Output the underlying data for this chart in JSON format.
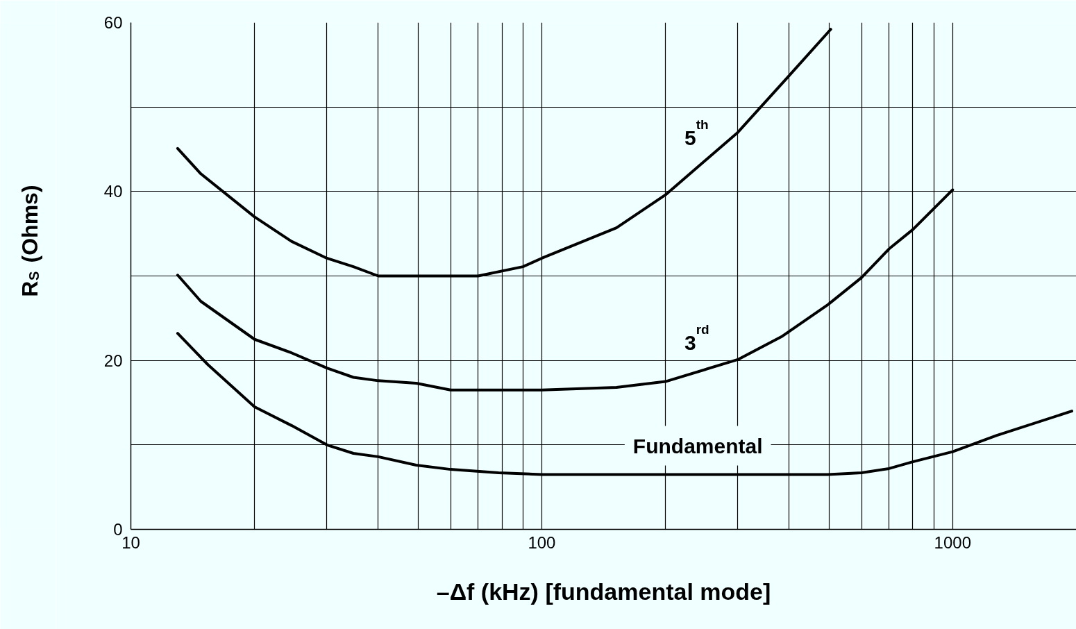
{
  "chart_data": {
    "type": "line",
    "xlabel": "–Δf (kHz) [fundamental mode]",
    "ylabel": "R$_{S}$ (Ohms)",
    "log": "x",
    "grid": true,
    "marker": "none",
    "line_style": "solid",
    "xlim": [
      10,
      2000
    ],
    "ylim": [
      0,
      60
    ],
    "xticks": [
      10,
      {
        "value": 20,
        "label": null
      },
      {
        "value": 30,
        "label": null
      },
      {
        "value": 40,
        "label": null
      },
      {
        "value": 50,
        "label": null
      },
      {
        "value": 60,
        "label": null
      },
      {
        "value": 70,
        "label": null
      },
      {
        "value": 80,
        "label": null
      },
      {
        "value": 90,
        "label": null
      },
      100,
      {
        "value": 200,
        "label": null
      },
      {
        "value": 300,
        "label": null
      },
      {
        "value": 400,
        "label": null
      },
      {
        "value": 500,
        "label": null
      },
      {
        "value": 600,
        "label": null
      },
      {
        "value": 700,
        "label": null
      },
      {
        "value": 800,
        "label": null
      },
      {
        "value": 900,
        "label": null
      },
      1000
    ],
    "yticks": [
      0,
      {
        "value": 10,
        "label": null
      },
      20,
      {
        "value": 30,
        "label": null
      },
      40,
      {
        "value": 50,
        "label": null
      },
      60
    ],
    "series": [
      {
        "name": "5$^{th}$",
        "color": "#000000",
        "x": [
          13,
          14.8,
          20,
          24.6,
          30,
          34.8,
          40,
          49.5,
          70,
          90,
          100,
          152,
          200,
          300,
          398,
          505
        ],
        "values": [
          45.1,
          42.1,
          37.0,
          34.1,
          32.1,
          31.1,
          30.0,
          30.0,
          30.0,
          31.1,
          32.1,
          35.7,
          39.6,
          47.0,
          53.6,
          59.2
        ]
      },
      {
        "name": "3$^{rd}$",
        "color": "#000000",
        "x": [
          13,
          14.8,
          20,
          24.6,
          30,
          34.8,
          40,
          49.5,
          60,
          78.5,
          100,
          152,
          200,
          300,
          383,
          497,
          600,
          700,
          800,
          1000
        ],
        "values": [
          30.1,
          27.0,
          22.5,
          20.9,
          19.1,
          18.0,
          17.6,
          17.3,
          16.5,
          16.5,
          16.5,
          16.8,
          17.5,
          20.1,
          22.8,
          26.6,
          29.8,
          33.2,
          35.5,
          40.2
        ]
      },
      {
        "name": "Fundamental",
        "color": "#000000",
        "x": [
          13,
          15.4,
          20,
          24.6,
          30,
          34.8,
          40,
          49.5,
          60,
          78.5,
          100,
          157,
          300,
          497,
          600,
          700,
          800,
          1000,
          1277,
          1950
        ],
        "values": [
          23.2,
          19.5,
          14.5,
          12.3,
          10.0,
          9.0,
          8.6,
          7.6,
          7.1,
          6.7,
          6.5,
          6.5,
          6.5,
          6.5,
          6.7,
          7.2,
          8.0,
          9.2,
          11.1,
          14.0
        ]
      }
    ]
  }
}
